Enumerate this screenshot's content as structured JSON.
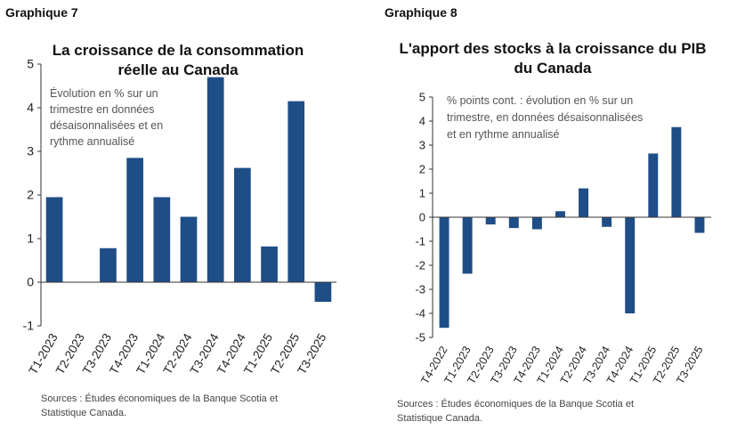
{
  "graphs": {
    "left_label": "Graphique 7",
    "right_label": "Graphique 8"
  },
  "chart_data": [
    {
      "type": "bar",
      "title_line1": "La croissance de la consommation",
      "title_line2": "réelle au Canada",
      "note_lines": [
        "Évolution en % sur un",
        "trimestre en données",
        "désaisonnalisées et en",
        "rythme annualisé"
      ],
      "categories": [
        "T1-2023",
        "T2-2023",
        "T3-2023",
        "T4-2023",
        "T1-2024",
        "T2-2024",
        "T3-2024",
        "T4-2024",
        "T1-2025",
        "T2-2025",
        "T3-2025"
      ],
      "values": [
        1.95,
        0.0,
        0.78,
        2.85,
        1.95,
        1.5,
        4.7,
        2.62,
        0.82,
        4.15,
        -0.45
      ],
      "ylim": [
        -1,
        5
      ],
      "yticks": [
        "5",
        "4",
        "3",
        "2",
        "1",
        "0",
        "-1"
      ],
      "bar_color": "#1f4e87",
      "source_lines": [
        "Sources : Études économiques de la Banque Scotia et",
        "Statistique Canada."
      ]
    },
    {
      "type": "bar",
      "title_line1": "L'apport des stocks à la croissance du PIB",
      "title_line2": "du Canada",
      "note_lines": [
        "% points cont. : évolution en % sur un",
        "trimestre, en données désaisonnalisées",
        "et en rythme annualisé"
      ],
      "categories": [
        "T4-2022",
        "T1-2023",
        "T2-2023",
        "T3-2023",
        "T4-2023",
        "T1-2024",
        "T2-2024",
        "T3-2024",
        "T4-2024",
        "T1-2025",
        "T2-2025",
        "T3-2025"
      ],
      "values": [
        -4.6,
        -2.35,
        -0.3,
        -0.45,
        -0.5,
        0.25,
        1.2,
        -0.4,
        -4.0,
        2.65,
        3.75,
        -0.65
      ],
      "ylim": [
        -5,
        5
      ],
      "yticks": [
        "5",
        "4",
        "3",
        "2",
        "1",
        "0",
        "-1",
        "-2",
        "-3",
        "-4",
        "-5"
      ],
      "bar_color": "#1f4e87",
      "source_lines": [
        "Sources : Études économiques de la Banque Scotia et",
        "Statistique Canada."
      ]
    }
  ]
}
